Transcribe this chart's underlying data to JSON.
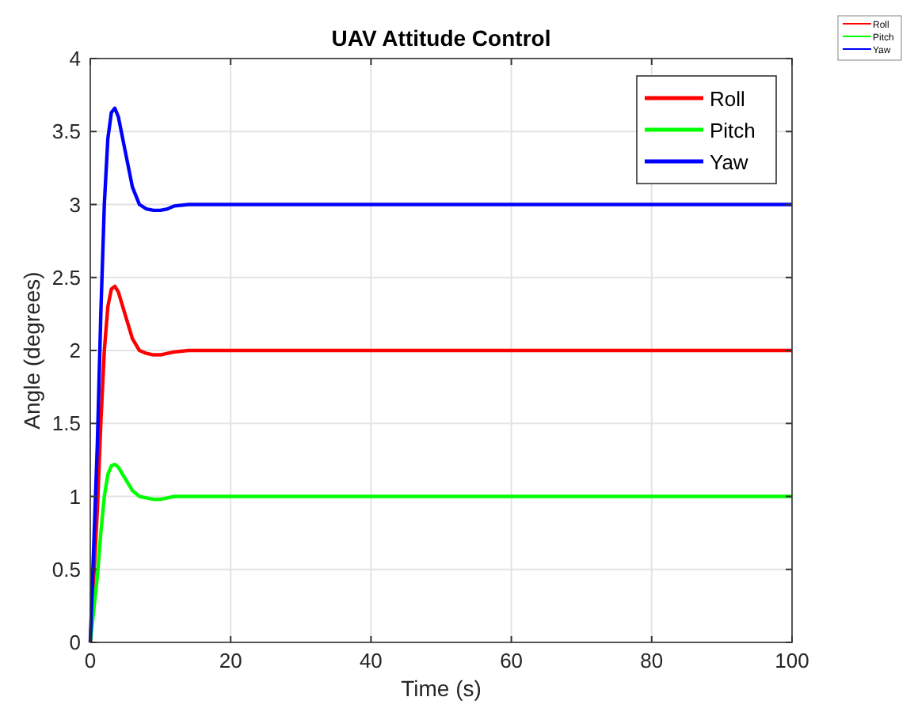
{
  "chart_data": {
    "type": "line",
    "title": "UAV Attitude Control",
    "xlabel": "Time (s)",
    "ylabel": "Angle (degrees)",
    "x": [
      0,
      1,
      1.5,
      2,
      2.5,
      3,
      3.5,
      4,
      5,
      6,
      7,
      8,
      9,
      10,
      11,
      12,
      14,
      20,
      40,
      60,
      80,
      100
    ],
    "series": [
      {
        "name": "Roll",
        "color": "#ff0000",
        "values": [
          0,
          0.9,
          1.5,
          2.0,
          2.3,
          2.42,
          2.44,
          2.4,
          2.24,
          2.08,
          2.0,
          1.98,
          1.97,
          1.97,
          1.98,
          1.99,
          2,
          2,
          2,
          2,
          2,
          2
        ]
      },
      {
        "name": "Pitch",
        "color": "#00ff00",
        "values": [
          0,
          0.45,
          0.75,
          1.0,
          1.15,
          1.21,
          1.22,
          1.2,
          1.12,
          1.04,
          1.0,
          0.99,
          0.98,
          0.98,
          0.99,
          1,
          1,
          1,
          1,
          1,
          1,
          1
        ]
      },
      {
        "name": "Yaw",
        "color": "#0000ff",
        "values": [
          0,
          1.35,
          2.25,
          3.0,
          3.45,
          3.63,
          3.66,
          3.6,
          3.36,
          3.12,
          3.0,
          2.97,
          2.96,
          2.96,
          2.97,
          2.99,
          3,
          3,
          3,
          3,
          3,
          3
        ]
      }
    ],
    "xlim": [
      0,
      100
    ],
    "xticks": [
      0,
      20,
      40,
      60,
      80,
      100
    ],
    "ylim": [
      0,
      4
    ],
    "yticks": [
      0,
      0.5,
      1,
      1.5,
      2,
      2.5,
      3,
      3.5,
      4
    ],
    "grid": true,
    "legend": "top right",
    "marker": "none",
    "line_style": "solid"
  }
}
